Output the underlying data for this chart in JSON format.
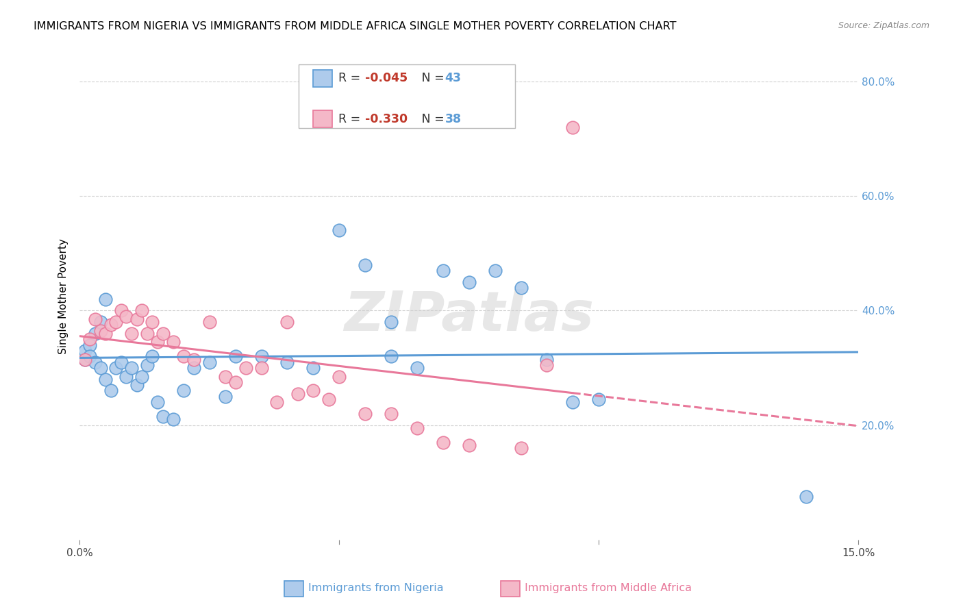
{
  "title": "IMMIGRANTS FROM NIGERIA VS IMMIGRANTS FROM MIDDLE AFRICA SINGLE MOTHER POVERTY CORRELATION CHART",
  "source": "Source: ZipAtlas.com",
  "ylabel": "Single Mother Poverty",
  "xlim": [
    0.0,
    0.15
  ],
  "ylim": [
    0.0,
    0.85
  ],
  "yticks": [
    0.2,
    0.4,
    0.6,
    0.8
  ],
  "ytick_labels": [
    "20.0%",
    "40.0%",
    "60.0%",
    "80.0%"
  ],
  "right_axis_color": "#5b9bd5",
  "nigeria_color": "#aecbec",
  "nigeria_edge_color": "#5b9bd5",
  "middle_africa_color": "#f4b8c8",
  "middle_africa_edge_color": "#e8789a",
  "nigeria_R": -0.045,
  "nigeria_N": 43,
  "middle_africa_R": -0.33,
  "middle_africa_N": 38,
  "nigeria_scatter_x": [
    0.001,
    0.001,
    0.002,
    0.002,
    0.003,
    0.003,
    0.004,
    0.004,
    0.005,
    0.005,
    0.006,
    0.007,
    0.008,
    0.009,
    0.01,
    0.011,
    0.012,
    0.013,
    0.014,
    0.015,
    0.016,
    0.018,
    0.02,
    0.022,
    0.025,
    0.028,
    0.03,
    0.035,
    0.04,
    0.045,
    0.05,
    0.055,
    0.06,
    0.065,
    0.07,
    0.08,
    0.085,
    0.09,
    0.095,
    0.1,
    0.06,
    0.075,
    0.14
  ],
  "nigeria_scatter_y": [
    0.315,
    0.33,
    0.34,
    0.32,
    0.36,
    0.31,
    0.38,
    0.3,
    0.42,
    0.28,
    0.26,
    0.3,
    0.31,
    0.285,
    0.3,
    0.27,
    0.285,
    0.305,
    0.32,
    0.24,
    0.215,
    0.21,
    0.26,
    0.3,
    0.31,
    0.25,
    0.32,
    0.32,
    0.31,
    0.3,
    0.54,
    0.48,
    0.38,
    0.3,
    0.47,
    0.47,
    0.44,
    0.315,
    0.24,
    0.245,
    0.32,
    0.45,
    0.075
  ],
  "middle_africa_scatter_x": [
    0.001,
    0.002,
    0.003,
    0.004,
    0.005,
    0.006,
    0.007,
    0.008,
    0.009,
    0.01,
    0.011,
    0.012,
    0.013,
    0.014,
    0.015,
    0.016,
    0.018,
    0.02,
    0.022,
    0.025,
    0.028,
    0.03,
    0.032,
    0.035,
    0.038,
    0.04,
    0.042,
    0.045,
    0.048,
    0.05,
    0.055,
    0.06,
    0.065,
    0.07,
    0.075,
    0.085,
    0.09,
    0.095
  ],
  "middle_africa_scatter_y": [
    0.315,
    0.35,
    0.385,
    0.365,
    0.36,
    0.375,
    0.38,
    0.4,
    0.39,
    0.36,
    0.385,
    0.4,
    0.36,
    0.38,
    0.345,
    0.36,
    0.345,
    0.32,
    0.315,
    0.38,
    0.285,
    0.275,
    0.3,
    0.3,
    0.24,
    0.38,
    0.255,
    0.26,
    0.245,
    0.285,
    0.22,
    0.22,
    0.195,
    0.17,
    0.165,
    0.16,
    0.305,
    0.72
  ],
  "watermark": "ZIPatlas",
  "watermark_color": "#d0d0d0",
  "background_color": "#ffffff",
  "grid_color": "#d0d0d0",
  "title_fontsize": 11.5,
  "axis_label_fontsize": 11,
  "tick_fontsize": 11,
  "legend_fontsize": 12.5
}
